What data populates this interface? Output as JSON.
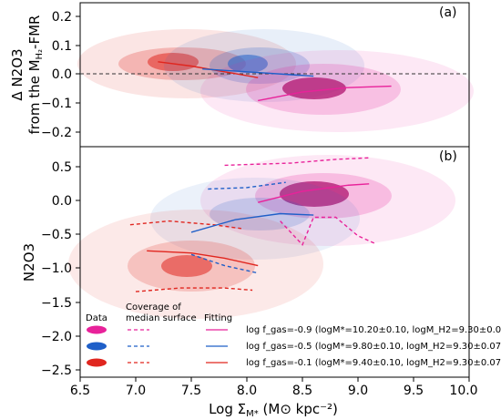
{
  "colors": {
    "magenta": "#e8229a",
    "blue": "#1f5fc8",
    "red": "#e0261f",
    "axis": "#000000"
  },
  "xaxis": {
    "label": "Log Σ",
    "sub": "M*",
    "unit": " (M⊙ kpc⁻²)",
    "ticks": [
      "6.5",
      "7.0",
      "7.5",
      "8.0",
      "8.5",
      "9.0",
      "9.5",
      "10.0"
    ],
    "range": [
      6.5,
      10.0
    ]
  },
  "top": {
    "panel_label": "(a)",
    "ylabel_line1": "Δ N2O3",
    "ylabel_line2": "from the M",
    "ylabel_sub": "H₂",
    "ylabel_end": "-FMR",
    "ticks": [
      "0.2",
      "0.1",
      "0.0",
      "−0.1",
      "−0.2"
    ],
    "ylim": [
      -0.25,
      0.25
    ]
  },
  "bottom": {
    "panel_label": "(b)",
    "ylabel": "N2O3",
    "ticks": [
      "0.5",
      "0.0",
      "−0.5",
      "−1.0",
      "−1.5",
      "−2.0",
      "−2.5"
    ],
    "ylim": [
      -2.5,
      0.6
    ]
  },
  "legend": {
    "head_data": "Data",
    "head_cov1": "Coverage of",
    "head_cov2": "median surface",
    "head_fit": "Fitting",
    "rows": [
      {
        "color": "magenta",
        "text": "log f_gas=-0.9 (logM*=10.20±0.10, logM_H2=9.30±0.07)"
      },
      {
        "color": "blue",
        "text": "log f_gas=-0.5 (logM*=9.80±0.10, logM_H2=9.30±0.07)"
      },
      {
        "color": "red",
        "text": "log f_gas=-0.1 (logM*=9.40±0.10, logM_H2=9.30±0.07)"
      }
    ]
  },
  "chart_data": [
    {
      "type": "line",
      "panel": "top",
      "ylim": [
        -0.25,
        0.25
      ],
      "xlim": [
        6.5,
        10.0
      ],
      "reference_line": {
        "y": 0.0,
        "style": "dashed"
      },
      "series": [
        {
          "color": "red",
          "x": [
            7.2,
            7.5,
            7.8,
            8.1
          ],
          "y": [
            0.045,
            0.03,
            0.01,
            -0.01
          ]
        },
        {
          "color": "blue",
          "x": [
            7.6,
            8.0,
            8.4,
            8.6
          ],
          "y": [
            0.02,
            0.01,
            0.0,
            -0.005
          ]
        },
        {
          "color": "magenta",
          "x": [
            8.1,
            8.5,
            8.9,
            9.3
          ],
          "y": [
            -0.09,
            -0.06,
            -0.045,
            -0.04
          ]
        }
      ]
    },
    {
      "type": "line",
      "panel": "bottom",
      "ylim": [
        -2.5,
        0.6
      ],
      "xlim": [
        6.5,
        10.0
      ],
      "fits": [
        {
          "color": "magenta",
          "x": [
            8.1,
            8.5,
            8.9,
            9.1
          ],
          "y": [
            -0.15,
            0.0,
            0.08,
            0.1
          ]
        },
        {
          "color": "blue",
          "x": [
            7.5,
            7.9,
            8.3,
            8.6
          ],
          "y": [
            -0.55,
            -0.38,
            -0.3,
            -0.32
          ]
        },
        {
          "color": "red",
          "x": [
            7.1,
            7.5,
            7.8,
            8.1
          ],
          "y": [
            -0.8,
            -0.83,
            -0.9,
            -1.0
          ]
        }
      ],
      "coverage": [
        {
          "color": "magenta",
          "x": [
            7.8,
            8.4,
            8.8,
            9.1
          ],
          "y": [
            0.35,
            0.38,
            0.43,
            0.45
          ]
        },
        {
          "color": "magenta",
          "x": [
            8.3,
            8.5,
            8.6,
            8.8,
            9.0,
            9.15
          ],
          "y": [
            -0.4,
            -0.72,
            -0.35,
            -0.35,
            -0.6,
            -0.7
          ]
        },
        {
          "color": "blue",
          "x": [
            7.65,
            8.0,
            8.35
          ],
          "y": [
            0.03,
            0.05,
            0.12
          ]
        },
        {
          "color": "blue",
          "x": [
            7.5,
            7.8,
            8.1
          ],
          "y": [
            -0.85,
            -1.0,
            -1.1
          ]
        },
        {
          "color": "red",
          "x": [
            6.95,
            7.3,
            7.7,
            7.95
          ],
          "y": [
            -0.45,
            -0.4,
            -0.45,
            -0.5
          ]
        },
        {
          "color": "red",
          "x": [
            7.0,
            7.4,
            7.8,
            8.05
          ],
          "y": [
            -1.35,
            -1.3,
            -1.3,
            -1.33
          ]
        }
      ]
    }
  ]
}
